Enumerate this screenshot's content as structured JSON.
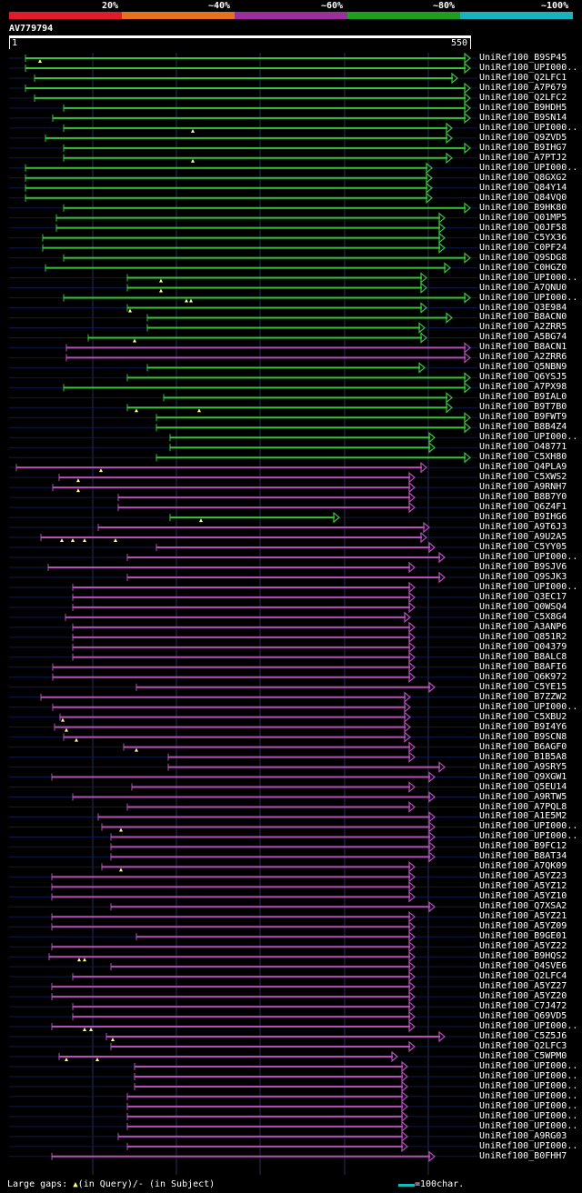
{
  "legend": {
    "labels": [
      "20%",
      "~40%",
      "~60%",
      "~80%",
      "~100%"
    ],
    "colors": [
      "#e31a2a",
      "#e8721c",
      "#9b2f9d",
      "#1ea01e",
      "#17b4bd"
    ]
  },
  "query": {
    "id": "AV779794",
    "start": "1",
    "end": "550"
  },
  "colors": {
    "green": "#39c43a",
    "purple": "#b650b8",
    "guide": "#0d1a4a"
  },
  "hits": [
    {
      "label": "UniRef100_B9SP45",
      "s": 28,
      "e": 517,
      "c": "g",
      "g": [
        44
      ]
    },
    {
      "label": "UniRef100_UPI000..",
      "s": 28,
      "e": 517,
      "c": "g",
      "g": []
    },
    {
      "label": "UniRef100_Q2LFC1",
      "s": 38,
      "e": 503,
      "c": "g",
      "g": []
    },
    {
      "label": "UniRef100_A7P679",
      "s": 28,
      "e": 517,
      "c": "g",
      "g": []
    },
    {
      "label": "UniRef100_Q2LFC2",
      "s": 38,
      "e": 517,
      "c": "g",
      "g": []
    },
    {
      "label": "UniRef100_B9HDH5",
      "s": 70,
      "e": 517,
      "c": "g",
      "g": []
    },
    {
      "label": "UniRef100_B9SN14",
      "s": 58,
      "e": 517,
      "c": "g",
      "g": []
    },
    {
      "label": "UniRef100_UPI000..",
      "s": 70,
      "e": 497,
      "c": "g",
      "g": [
        212
      ]
    },
    {
      "label": "UniRef100_Q9ZVD5",
      "s": 50,
      "e": 497,
      "c": "g",
      "g": []
    },
    {
      "label": "UniRef100_B9IHG7",
      "s": 70,
      "e": 517,
      "c": "g",
      "g": []
    },
    {
      "label": "UniRef100_A7PTJ2",
      "s": 70,
      "e": 497,
      "c": "g",
      "g": [
        212
      ]
    },
    {
      "label": "UniRef100_UPI000..",
      "s": 28,
      "e": 475,
      "c": "g",
      "g": []
    },
    {
      "label": "UniRef100_Q8GXG2",
      "s": 28,
      "e": 475,
      "c": "g",
      "g": []
    },
    {
      "label": "UniRef100_Q84Y14",
      "s": 28,
      "e": 475,
      "c": "g",
      "g": []
    },
    {
      "label": "UniRef100_Q84VQ0",
      "s": 28,
      "e": 475,
      "c": "g",
      "g": []
    },
    {
      "label": "UniRef100_B9HK80",
      "s": 70,
      "e": 517,
      "c": "g",
      "g": []
    },
    {
      "label": "UniRef100_Q01MP5",
      "s": 62,
      "e": 489,
      "c": "g",
      "g": []
    },
    {
      "label": "UniRef100_Q0JF58",
      "s": 62,
      "e": 489,
      "c": "g",
      "g": []
    },
    {
      "label": "UniRef100_C5YX36",
      "s": 47,
      "e": 489,
      "c": "g",
      "g": []
    },
    {
      "label": "UniRef100_C0PF24",
      "s": 47,
      "e": 489,
      "c": "g",
      "g": []
    },
    {
      "label": "UniRef100_Q9SDG8",
      "s": 70,
      "e": 517,
      "c": "g",
      "g": []
    },
    {
      "label": "UniRef100_C0HGZ0",
      "s": 50,
      "e": 495,
      "c": "g",
      "g": []
    },
    {
      "label": "UniRef100_UPI000..",
      "s": 140,
      "e": 469,
      "c": "g",
      "g": [
        177
      ]
    },
    {
      "label": "UniRef100_A7QNU0",
      "s": 140,
      "e": 469,
      "c": "g",
      "g": [
        177
      ]
    },
    {
      "label": "UniRef100_UPI000..",
      "s": 70,
      "e": 517,
      "c": "g",
      "g": [
        205,
        210
      ]
    },
    {
      "label": "UniRef100_Q3E984",
      "s": 140,
      "e": 469,
      "c": "g",
      "g": [
        143
      ]
    },
    {
      "label": "UniRef100_B8ACN0",
      "s": 162,
      "e": 497,
      "c": "g",
      "g": []
    },
    {
      "label": "UniRef100_A2ZRR5",
      "s": 162,
      "e": 467,
      "c": "g",
      "g": []
    },
    {
      "label": "UniRef100_A5BG74",
      "s": 97,
      "e": 469,
      "c": "g",
      "g": [
        148
      ]
    },
    {
      "label": "UniRef100_B8ACN1",
      "s": 73,
      "e": 517,
      "c": "p",
      "g": []
    },
    {
      "label": "UniRef100_A2ZRR6",
      "s": 73,
      "e": 517,
      "c": "p",
      "g": []
    },
    {
      "label": "UniRef100_Q5NBN9",
      "s": 162,
      "e": 467,
      "c": "g",
      "g": []
    },
    {
      "label": "UniRef100_Q6YSJ5",
      "s": 140,
      "e": 517,
      "c": "g",
      "g": []
    },
    {
      "label": "UniRef100_A7PX98",
      "s": 70,
      "e": 517,
      "c": "g",
      "g": []
    },
    {
      "label": "UniRef100_B9IAL0",
      "s": 180,
      "e": 497,
      "c": "g",
      "g": []
    },
    {
      "label": "UniRef100_B9T7B0",
      "s": 140,
      "e": 497,
      "c": "g",
      "g": [
        150,
        219
      ]
    },
    {
      "label": "UniRef100_B9FWT9",
      "s": 172,
      "e": 517,
      "c": "g",
      "g": []
    },
    {
      "label": "UniRef100_B8B4Z4",
      "s": 172,
      "e": 517,
      "c": "g",
      "g": []
    },
    {
      "label": "UniRef100_UPI000..",
      "s": 187,
      "e": 478,
      "c": "g",
      "g": []
    },
    {
      "label": "UniRef100_O48771",
      "s": 187,
      "e": 478,
      "c": "g",
      "g": []
    },
    {
      "label": "UniRef100_C5XH80",
      "s": 172,
      "e": 517,
      "c": "g",
      "g": []
    },
    {
      "label": "UniRef100_Q4PLA9",
      "s": 18,
      "e": 469,
      "c": "p",
      "g": [
        111
      ]
    },
    {
      "label": "UniRef100_C5XWS2",
      "s": 65,
      "e": 456,
      "c": "p",
      "g": [
        86
      ]
    },
    {
      "label": "UniRef100_A9RNH7",
      "s": 58,
      "e": 456,
      "c": "p",
      "g": [
        86
      ]
    },
    {
      "label": "UniRef100_B8B7Y0",
      "s": 130,
      "e": 456,
      "c": "p",
      "g": []
    },
    {
      "label": "UniRef100_Q6Z4F1",
      "s": 130,
      "e": 456,
      "c": "p",
      "g": []
    },
    {
      "label": "UniRef100_B9IHG6",
      "s": 187,
      "e": 373,
      "c": "g",
      "g": [
        221
      ]
    },
    {
      "label": "UniRef100_A9T6J3",
      "s": 108,
      "e": 472,
      "c": "p",
      "g": []
    },
    {
      "label": "UniRef100_A9U2A5",
      "s": 45,
      "e": 469,
      "c": "p",
      "g": [
        68,
        80,
        93,
        127
      ]
    },
    {
      "label": "UniRef100_C5YY05",
      "s": 172,
      "e": 478,
      "c": "p",
      "g": []
    },
    {
      "label": "UniRef100_UPI000..",
      "s": 140,
      "e": 489,
      "c": "p",
      "g": []
    },
    {
      "label": "UniRef100_B9SJV6",
      "s": 53,
      "e": 456,
      "c": "p",
      "g": []
    },
    {
      "label": "UniRef100_Q9SJK3",
      "s": 140,
      "e": 489,
      "c": "p",
      "g": []
    },
    {
      "label": "UniRef100_UPI000..",
      "s": 80,
      "e": 456,
      "c": "p",
      "g": []
    },
    {
      "label": "UniRef100_Q3EC17",
      "s": 80,
      "e": 456,
      "c": "p",
      "g": []
    },
    {
      "label": "UniRef100_Q0WSQ4",
      "s": 80,
      "e": 456,
      "c": "p",
      "g": []
    },
    {
      "label": "UniRef100_C5X8G4",
      "s": 72,
      "e": 451,
      "c": "p",
      "g": []
    },
    {
      "label": "UniRef100_A3ANP6",
      "s": 80,
      "e": 456,
      "c": "p",
      "g": []
    },
    {
      "label": "UniRef100_Q851R2",
      "s": 80,
      "e": 456,
      "c": "p",
      "g": []
    },
    {
      "label": "UniRef100_Q04379",
      "s": 80,
      "e": 456,
      "c": "p",
      "g": []
    },
    {
      "label": "UniRef100_B8ALC8",
      "s": 80,
      "e": 456,
      "c": "p",
      "g": []
    },
    {
      "label": "UniRef100_B8AFI6",
      "s": 58,
      "e": 456,
      "c": "p",
      "g": []
    },
    {
      "label": "UniRef100_Q6K972",
      "s": 58,
      "e": 456,
      "c": "p",
      "g": []
    },
    {
      "label": "UniRef100_C5YE15",
      "s": 150,
      "e": 478,
      "c": "p",
      "g": []
    },
    {
      "label": "UniRef100_B7ZZW2",
      "s": 45,
      "e": 451,
      "c": "p",
      "g": []
    },
    {
      "label": "UniRef100_UPI000..",
      "s": 58,
      "e": 451,
      "c": "p",
      "g": []
    },
    {
      "label": "UniRef100_C5XBU2",
      "s": 66,
      "e": 451,
      "c": "p",
      "g": [
        69
      ]
    },
    {
      "label": "UniRef100_B9I4Y6",
      "s": 60,
      "e": 451,
      "c": "p",
      "g": [
        73
      ]
    },
    {
      "label": "UniRef100_B9SCN8",
      "s": 70,
      "e": 451,
      "c": "p",
      "g": [
        84
      ]
    },
    {
      "label": "UniRef100_B6AGF0",
      "s": 136,
      "e": 456,
      "c": "p",
      "g": [
        150
      ]
    },
    {
      "label": "UniRef100_B1B5A8",
      "s": 185,
      "e": 456,
      "c": "p",
      "g": []
    },
    {
      "label": "UniRef100_A9SRY5",
      "s": 185,
      "e": 489,
      "c": "p",
      "g": []
    },
    {
      "label": "UniRef100_Q9XGW1",
      "s": 57,
      "e": 478,
      "c": "p",
      "g": []
    },
    {
      "label": "UniRef100_Q5EU14",
      "s": 145,
      "e": 456,
      "c": "p",
      "g": []
    },
    {
      "label": "UniRef100_A9RTW5",
      "s": 80,
      "e": 478,
      "c": "p",
      "g": []
    },
    {
      "label": "UniRef100_A7PQL8",
      "s": 140,
      "e": 456,
      "c": "p",
      "g": []
    },
    {
      "label": "UniRef100_A1E5M2",
      "s": 108,
      "e": 478,
      "c": "p",
      "g": []
    },
    {
      "label": "UniRef100_UPI000..",
      "s": 112,
      "e": 478,
      "c": "p",
      "g": [
        133
      ]
    },
    {
      "label": "UniRef100_UPI000..",
      "s": 122,
      "e": 478,
      "c": "p",
      "g": []
    },
    {
      "label": "UniRef100_B9FC12",
      "s": 122,
      "e": 478,
      "c": "p",
      "g": []
    },
    {
      "label": "UniRef100_B8AT34",
      "s": 122,
      "e": 478,
      "c": "p",
      "g": []
    },
    {
      "label": "UniRef100_A7QK09",
      "s": 112,
      "e": 456,
      "c": "p",
      "g": [
        133
      ]
    },
    {
      "label": "UniRef100_A5YZ23",
      "s": 57,
      "e": 456,
      "c": "p",
      "g": []
    },
    {
      "label": "UniRef100_A5YZ12",
      "s": 57,
      "e": 456,
      "c": "p",
      "g": []
    },
    {
      "label": "UniRef100_A5YZ10",
      "s": 57,
      "e": 456,
      "c": "p",
      "g": []
    },
    {
      "label": "UniRef100_Q7XSA2",
      "s": 122,
      "e": 478,
      "c": "p",
      "g": []
    },
    {
      "label": "UniRef100_A5YZ21",
      "s": 57,
      "e": 456,
      "c": "p",
      "g": []
    },
    {
      "label": "UniRef100_A5YZ09",
      "s": 57,
      "e": 456,
      "c": "p",
      "g": []
    },
    {
      "label": "UniRef100_B9GE01",
      "s": 150,
      "e": 456,
      "c": "p",
      "g": []
    },
    {
      "label": "UniRef100_A5YZ22",
      "s": 57,
      "e": 456,
      "c": "p",
      "g": []
    },
    {
      "label": "UniRef100_B9HQS2",
      "s": 54,
      "e": 456,
      "c": "p",
      "g": [
        87,
        93
      ]
    },
    {
      "label": "UniRef100_Q4SVE6",
      "s": 122,
      "e": 456,
      "c": "p",
      "g": []
    },
    {
      "label": "UniRef100_Q2LFC4",
      "s": 80,
      "e": 456,
      "c": "p",
      "g": []
    },
    {
      "label": "UniRef100_A5YZ27",
      "s": 57,
      "e": 456,
      "c": "p",
      "g": []
    },
    {
      "label": "UniRef100_A5YZ20",
      "s": 57,
      "e": 456,
      "c": "p",
      "g": []
    },
    {
      "label": "UniRef100_C7J472",
      "s": 80,
      "e": 456,
      "c": "p",
      "g": []
    },
    {
      "label": "UniRef100_Q69VD5",
      "s": 80,
      "e": 456,
      "c": "p",
      "g": []
    },
    {
      "label": "UniRef100_UPI000..",
      "s": 57,
      "e": 456,
      "c": "p",
      "g": [
        93,
        100
      ]
    },
    {
      "label": "UniRef100_C5Z5J6",
      "s": 117,
      "e": 489,
      "c": "p",
      "g": [
        124
      ]
    },
    {
      "label": "UniRef100_Q2LFC3",
      "s": 122,
      "e": 456,
      "c": "p",
      "g": []
    },
    {
      "label": "UniRef100_C5WPM0",
      "s": 65,
      "e": 437,
      "c": "p",
      "g": [
        73,
        107
      ]
    },
    {
      "label": "UniRef100_UPI000..",
      "s": 148,
      "e": 448,
      "c": "p",
      "g": []
    },
    {
      "label": "UniRef100_UPI000..",
      "s": 148,
      "e": 448,
      "c": "p",
      "g": []
    },
    {
      "label": "UniRef100_UPI000..",
      "s": 148,
      "e": 448,
      "c": "p",
      "g": []
    },
    {
      "label": "UniRef100_UPI000..",
      "s": 140,
      "e": 448,
      "c": "p",
      "g": []
    },
    {
      "label": "UniRef100_UPI000..",
      "s": 140,
      "e": 448,
      "c": "p",
      "g": []
    },
    {
      "label": "UniRef100_UPI000..",
      "s": 140,
      "e": 448,
      "c": "p",
      "g": []
    },
    {
      "label": "UniRef100_UPI000..",
      "s": 140,
      "e": 448,
      "c": "p",
      "g": []
    },
    {
      "label": "UniRef100_A9RG03",
      "s": 130,
      "e": 448,
      "c": "p",
      "g": []
    },
    {
      "label": "UniRef100_UPI000..",
      "s": 140,
      "e": 448,
      "c": "p",
      "g": []
    },
    {
      "label": "UniRef100_B0FHH7",
      "s": 57,
      "e": 478,
      "c": "p",
      "g": []
    }
  ],
  "footer": {
    "gaps_prefix": "Large gaps: ",
    "gaps_query": "(in Query)/",
    "gaps_dash": "-",
    "gaps_subject": " (in Subject)",
    "scale": "=100char."
  }
}
